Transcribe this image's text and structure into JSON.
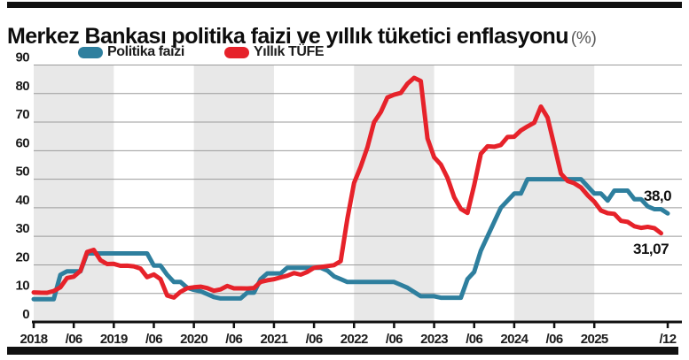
{
  "page": {
    "title": "Merkez Bankası politika faizi ve yıllık tüketici enflasyonu",
    "title_unit": "(%)"
  },
  "chart_data": {
    "type": "line",
    "title": "Merkez Bankası politika faizi ve yıllık tüketici enflasyonu",
    "unit": "%",
    "x_range": [
      "2018-01",
      "2025-12"
    ],
    "x_tick_labels": [
      "2018",
      "/06",
      "2019",
      "/06",
      "2020",
      "/06",
      "2021",
      "/06",
      "2022",
      "/06",
      "2023",
      "/06",
      "2024",
      "/06",
      "2025",
      "/12"
    ],
    "x_tick_months": [
      0,
      6,
      12,
      18,
      24,
      30,
      36,
      42,
      48,
      54,
      60,
      66,
      72,
      78,
      84,
      95
    ],
    "y_ticks": [
      0,
      10,
      20,
      30,
      40,
      50,
      60,
      70,
      80,
      90
    ],
    "ylim": [
      0,
      90
    ],
    "grid": "horizontal",
    "shaded_year_bands": [
      "2018",
      "2020",
      "2022",
      "2024"
    ],
    "legend": [
      {
        "label": "Politika faizi",
        "color": "#2e7f9e"
      },
      {
        "label": "Yıllık TÜFE",
        "color": "#e6222a"
      }
    ],
    "colors": {
      "band": "#e8e8e8",
      "grid": "#9b9b9b",
      "axis": "#111111"
    },
    "series": [
      {
        "name": "Politika faizi",
        "color": "#2e7f9e",
        "end_label": "38,0",
        "values": [
          8,
          8,
          8,
          8,
          16.5,
          17.75,
          17.75,
          17.75,
          24,
          24,
          24,
          24,
          24,
          24,
          24,
          24,
          24,
          24,
          19.75,
          19.75,
          16.5,
          14,
          14,
          12,
          11.25,
          10.75,
          9.75,
          8.75,
          8.25,
          8.25,
          8.25,
          8.25,
          10.25,
          10.25,
          15,
          17,
          17,
          17,
          19,
          19,
          19,
          19,
          19,
          19,
          18,
          16,
          15,
          14,
          14,
          14,
          14,
          14,
          14,
          14,
          14,
          13,
          12,
          10.5,
          9,
          9,
          9,
          8.5,
          8.5,
          8.5,
          8.5,
          15,
          17.5,
          25,
          30,
          35,
          40,
          42.5,
          45,
          45,
          50,
          50,
          50,
          50,
          50,
          50,
          50,
          50,
          50,
          47.5,
          45,
          45,
          42.5,
          46,
          46,
          46,
          43,
          43,
          40.5,
          39.5,
          39.5,
          38
        ]
      },
      {
        "name": "Yıllık TÜFE",
        "color": "#e6222a",
        "end_label": "31,07",
        "values": [
          10.35,
          10.26,
          10.23,
          10.85,
          12.15,
          15.39,
          15.85,
          17.9,
          24.52,
          25.24,
          21.62,
          20.3,
          20.35,
          19.67,
          19.71,
          19.5,
          18.71,
          15.72,
          16.65,
          15.01,
          9.26,
          8.55,
          10.56,
          11.84,
          12.15,
          12.37,
          11.86,
          10.94,
          11.39,
          12.62,
          11.76,
          11.77,
          11.75,
          11.89,
          14.03,
          14.6,
          14.97,
          15.61,
          16.19,
          17.14,
          16.59,
          17.53,
          18.95,
          19.25,
          19.58,
          19.89,
          21.31,
          36.08,
          48.69,
          54.44,
          61.14,
          69.97,
          73.5,
          78.62,
          79.6,
          80.21,
          83.45,
          85.51,
          84.39,
          64.27,
          57.68,
          55.18,
          50.51,
          43.68,
          39.59,
          38.21,
          47.83,
          58.94,
          61.53,
          61.36,
          61.98,
          64.77,
          64.86,
          67.07,
          68.5,
          69.8,
          75.45,
          71.6,
          61.78,
          51.97,
          49.38,
          48.58,
          47.09,
          44.38,
          42.12,
          39.05,
          38.1,
          37.86,
          35.41,
          35.05,
          33.52,
          32.95,
          33.29,
          32.87,
          31.07,
          null
        ]
      }
    ]
  }
}
